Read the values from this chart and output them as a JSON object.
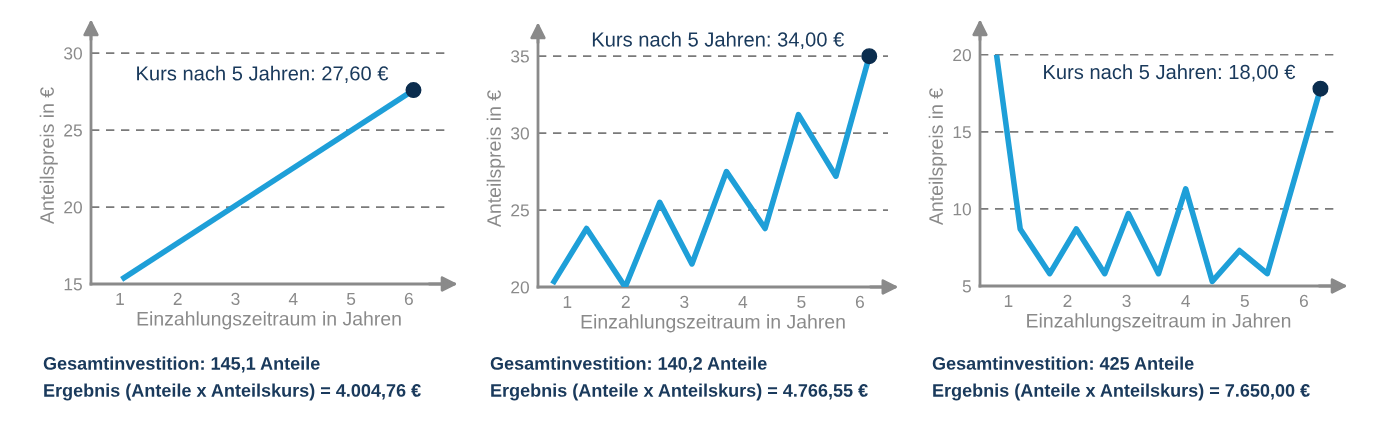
{
  "chart_data": [
    {
      "type": "line",
      "xlabel": "Einzahlungszeitraum in Jahren",
      "ylabel": "Anteilspreis in €",
      "xlim": [
        0.5,
        6.66
      ],
      "xticks": [
        1,
        2,
        3,
        4,
        5,
        6
      ],
      "ylim": [
        15,
        31.7
      ],
      "yticks": [
        15,
        20,
        25,
        30
      ],
      "grid": "y",
      "series": [
        {
          "color": "#1e9fd8",
          "x": [
            1.03,
            6.08
          ],
          "values": [
            15.3,
            27.6
          ]
        },
        {
          "type": "scatter",
          "marker": "circle",
          "color": "#0b2d4e",
          "x": [
            6.08
          ],
          "values": [
            27.6
          ]
        }
      ],
      "annotations": [
        {
          "text": "Kurs nach 5 Jahren: 27,60 €",
          "x": 6.08,
          "y": 27.6
        },
        "Gesamtinvestition: 145,1 Anteile",
        "Ergebnis (Anteile x Anteilskurs) = 4.004,76 €"
      ]
    },
    {
      "type": "line",
      "xlabel": "Einzahlungszeitraum in Jahren",
      "ylabel": "Anteilspreis in €",
      "xlim": [
        0.5,
        6.48
      ],
      "xticks": [
        1,
        2,
        3,
        4,
        5,
        6
      ],
      "ylim": [
        20,
        36.7
      ],
      "yticks": [
        20,
        25,
        30,
        35
      ],
      "grid": "y",
      "series": [
        {
          "color": "#1e9fd8",
          "x": [
            0.75,
            1.33,
            1.99,
            2.58,
            3.13,
            3.72,
            4.38,
            4.95,
            5.59,
            6.16
          ],
          "values": [
            20.2,
            23.8,
            20.0,
            25.5,
            21.5,
            27.5,
            23.8,
            31.2,
            27.2,
            35.0
          ]
        },
        {
          "type": "scatter",
          "marker": "circle",
          "color": "#0b2d4e",
          "x": [
            6.16
          ],
          "values": [
            35.0
          ]
        }
      ],
      "annotations": [
        {
          "text": "Kurs nach 5 Jahren: 34,00 €",
          "x": 6.16,
          "y": 35.0
        },
        "Gesamtinvestition: 140,2 Anteile",
        "Ergebnis (Anteile x Anteilskurs) = 4.766,55 €"
      ]
    },
    {
      "type": "line",
      "xlabel": "Einzahlungszeitraum in Jahren",
      "ylabel": "Anteilspreis in €",
      "xlim": [
        0.52,
        6.56
      ],
      "xticks": [
        1,
        2,
        3,
        4,
        5,
        6
      ],
      "ylim": [
        5,
        21.8
      ],
      "yticks": [
        5,
        10,
        15,
        20
      ],
      "grid": "y",
      "series": [
        {
          "color": "#1e9fd8",
          "x": [
            0.8,
            1.2,
            1.7,
            2.15,
            2.63,
            3.03,
            3.54,
            4.0,
            4.45,
            4.91,
            5.38,
            6.28
          ],
          "values": [
            20.0,
            8.7,
            5.8,
            8.7,
            5.8,
            9.7,
            5.8,
            11.3,
            5.3,
            7.3,
            5.8,
            17.8
          ]
        },
        {
          "type": "scatter",
          "marker": "circle",
          "color": "#0b2d4e",
          "x": [
            6.28
          ],
          "values": [
            17.8
          ]
        }
      ],
      "annotations": [
        {
          "text": "Kurs nach 5 Jahren: 18,00 €",
          "x": 6.28,
          "y": 17.8
        },
        "Gesamtinvestition: 425 Anteile",
        "Ergebnis (Anteile x Anteilskurs) = 7.650,00 €"
      ]
    }
  ]
}
